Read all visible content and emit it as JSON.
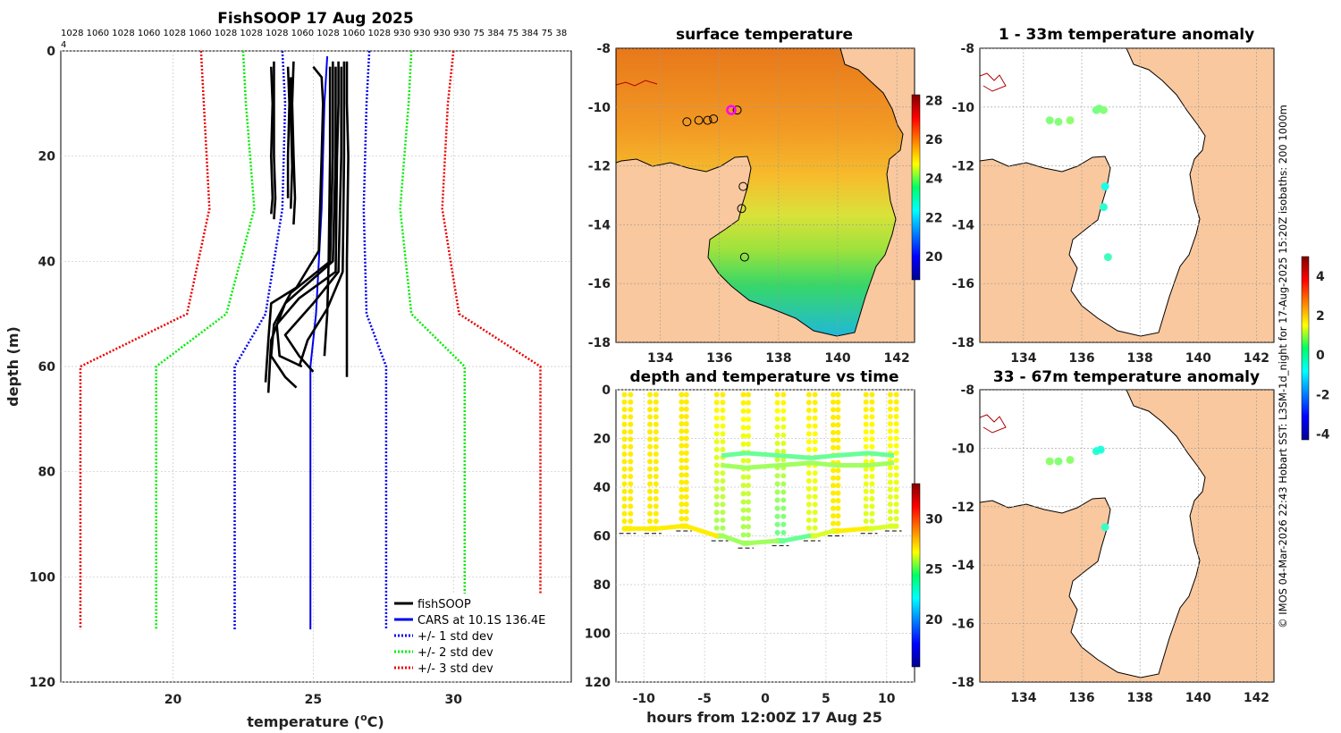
{
  "chart_data": [
    {
      "id": "profile",
      "type": "line",
      "title": "FishSOOP 17 Aug 2025",
      "top_tick_labels": "1028 1060 1028 1060 1028 1060 1028 1028 1028 1060 1028 1060 1028 930 930 930 930 75 384 75 384 75 38",
      "top_tick_overflow": "4",
      "xlabel": "temperature (",
      "xlabel_sup": "o",
      "xlabel_end": "C)",
      "ylabel": "depth (m)",
      "xlim": [
        16.0,
        34.2
      ],
      "ylim": [
        0,
        120
      ],
      "xticks": [
        20,
        25,
        30
      ],
      "yticks": [
        0,
        20,
        40,
        60,
        80,
        100,
        120
      ],
      "legend": [
        {
          "label": "fishSOOP",
          "color": "#000000",
          "style": "solid"
        },
        {
          "label": "CARS at 10.1S 136.4E",
          "color": "#0000ee",
          "style": "solid"
        },
        {
          "label": "+/- 1 std dev",
          "color": "#0000ee",
          "style": "dotted"
        },
        {
          "label": "+/- 2 std dev",
          "color": "#00ee00",
          "style": "dotted"
        },
        {
          "label": "+/- 3 std dev",
          "color": "#ee0000",
          "style": "dotted"
        }
      ],
      "cars": {
        "depth": [
          1,
          10,
          30,
          50,
          60,
          110
        ],
        "mean": [
          25.5,
          25.4,
          25.3,
          25.1,
          24.9,
          24.9
        ]
      },
      "std_lines": [
        {
          "name": "-1",
          "color": "#0000ee",
          "depth": [
            0,
            10,
            30,
            50,
            60,
            110
          ],
          "temp": [
            23.9,
            24.0,
            23.9,
            23.3,
            22.2,
            22.2
          ]
        },
        {
          "name": "+1",
          "color": "#0000ee",
          "depth": [
            0,
            10,
            30,
            50,
            60,
            110
          ],
          "temp": [
            27.0,
            26.9,
            26.8,
            26.9,
            27.6,
            27.6
          ]
        },
        {
          "name": "-2",
          "color": "#00ee00",
          "depth": [
            0,
            10,
            30,
            50,
            60,
            110
          ],
          "temp": [
            22.5,
            22.6,
            22.9,
            21.9,
            19.4,
            19.4
          ]
        },
        {
          "name": "+2",
          "color": "#00ee00",
          "depth": [
            0,
            10,
            30,
            50,
            60,
            110
          ],
          "temp": [
            28.5,
            28.4,
            28.1,
            28.5,
            30.4,
            30.4
          ]
        },
        {
          "name": "-3",
          "color": "#ee0000",
          "depth": [
            0,
            10,
            30,
            50,
            60,
            110
          ],
          "temp": [
            21.0,
            21.1,
            21.3,
            20.5,
            16.7,
            16.7
          ]
        },
        {
          "name": "+3",
          "color": "#ee0000",
          "depth": [
            0,
            10,
            30,
            50,
            60,
            110
          ],
          "temp": [
            30.0,
            29.8,
            29.6,
            30.2,
            33.1,
            33.1
          ]
        }
      ],
      "profiles": [
        {
          "temp": [
            23.6,
            23.6,
            23.6,
            23.65,
            23.6
          ],
          "depth": [
            2,
            10,
            20,
            28,
            32
          ]
        },
        {
          "temp": [
            23.5,
            23.55,
            23.5,
            23.55,
            23.5
          ],
          "depth": [
            3,
            10,
            20,
            28,
            31
          ]
        },
        {
          "temp": [
            24.1,
            24.15,
            24.1,
            24.1
          ],
          "depth": [
            3,
            10,
            20,
            28
          ]
        },
        {
          "temp": [
            24.3,
            24.25,
            24.3,
            24.35,
            24.3
          ],
          "depth": [
            2,
            10,
            20,
            28,
            33
          ]
        },
        {
          "temp": [
            24.2,
            24.2,
            24.25,
            24.2
          ],
          "depth": [
            5,
            12,
            22,
            30
          ]
        },
        {
          "temp": [
            25.0,
            25.3,
            25.35,
            25.3,
            25.2,
            24.4,
            23.5,
            23.4,
            23.3
          ],
          "depth": [
            3,
            5,
            10,
            20,
            38,
            45,
            48,
            55,
            63
          ]
        },
        {
          "temp": [
            25.7,
            25.7,
            25.7,
            25.6,
            24.2,
            23.6,
            23.5,
            24.0,
            24.4
          ],
          "depth": [
            2,
            10,
            20,
            40,
            46,
            52,
            58,
            62,
            64
          ]
        },
        {
          "temp": [
            25.8,
            25.8,
            25.8,
            25.7,
            24.0,
            23.5,
            23.4
          ],
          "depth": [
            3,
            10,
            20,
            40,
            48,
            55,
            65
          ]
        },
        {
          "temp": [
            25.9,
            25.9,
            25.85,
            25.8,
            24.5,
            23.7,
            23.8,
            24.6
          ],
          "depth": [
            2,
            10,
            20,
            42,
            47,
            52,
            58,
            60
          ]
        },
        {
          "temp": [
            26.0,
            26.0,
            26.0,
            25.9,
            25.0,
            24.0,
            24.5,
            25.0
          ],
          "depth": [
            3,
            10,
            20,
            42,
            48,
            54,
            58,
            61
          ]
        },
        {
          "temp": [
            26.1,
            26.1,
            26.1,
            26.05,
            25.5,
            24.8,
            24.5
          ],
          "depth": [
            2,
            10,
            20,
            42,
            49,
            55,
            60
          ]
        },
        {
          "temp": [
            26.2,
            26.2,
            26.25,
            26.2,
            26.2,
            26.2
          ],
          "depth": [
            2,
            10,
            20,
            40,
            50,
            62
          ]
        },
        {
          "temp": [
            25.6,
            25.6,
            25.6,
            25.55,
            25.5,
            25.4
          ],
          "depth": [
            3,
            10,
            20,
            40,
            50,
            58
          ]
        }
      ]
    },
    {
      "id": "sst_map",
      "type": "heatmap",
      "title": "surface temperature",
      "xlim": [
        132.5,
        142.6
      ],
      "ylim": [
        -18,
        -8
      ],
      "xticks": [
        134,
        136,
        138,
        140,
        142
      ],
      "yticks": [
        -8,
        -10,
        -12,
        -14,
        -16,
        -18
      ],
      "colorbar": {
        "min": 18.8,
        "max": 28.3,
        "ticks": [
          20,
          22,
          24,
          26,
          28
        ]
      },
      "stations": [
        {
          "lon": 134.9,
          "lat": -10.5
        },
        {
          "lon": 135.3,
          "lat": -10.45
        },
        {
          "lon": 135.6,
          "lat": -10.45
        },
        {
          "lon": 135.8,
          "lat": -10.4
        },
        {
          "lon": 136.6,
          "lat": -10.1
        },
        {
          "lon": 136.8,
          "lat": -12.7
        },
        {
          "lon": 136.75,
          "lat": -13.45
        },
        {
          "lon": 136.85,
          "lat": -15.1
        }
      ],
      "highlight": {
        "lon": 136.4,
        "lat": -10.1
      }
    },
    {
      "id": "time_series",
      "type": "scatter",
      "title": "depth and temperature vs time",
      "xlabel": "hours from 12:00Z 17 Aug 25",
      "xlim": [
        -12.3,
        12.3
      ],
      "ylim": [
        0,
        120
      ],
      "xticks": [
        -10,
        -5,
        0,
        5,
        10
      ],
      "yticks": [
        0,
        20,
        40,
        60,
        80,
        100,
        120
      ],
      "colorbar": {
        "min": 15.3,
        "max": 33.5,
        "ticks": [
          20,
          25,
          30
        ]
      },
      "casts": [
        {
          "t_start": -11.6,
          "t_end": -11.1,
          "bottom": 57,
          "temp_bottom": 27
        },
        {
          "t_start": -9.5,
          "t_end": -9.0,
          "bottom": 57,
          "temp_bottom": 27
        },
        {
          "t_start": -6.9,
          "t_end": -6.5,
          "bottom": 56,
          "temp_bottom": 27
        },
        {
          "t_start": -4.0,
          "t_end": -3.5,
          "bottom": 60,
          "temp_bottom": 25
        },
        {
          "t_start": -1.8,
          "t_end": -1.4,
          "bottom": 63,
          "temp_bottom": 25
        },
        {
          "t_start": 1.0,
          "t_end": 1.5,
          "bottom": 62,
          "temp_bottom": 24
        },
        {
          "t_start": 3.6,
          "t_end": 4.1,
          "bottom": 60,
          "temp_bottom": 26
        },
        {
          "t_start": 5.6,
          "t_end": 6.0,
          "bottom": 58,
          "temp_bottom": 27
        },
        {
          "t_start": 8.3,
          "t_end": 8.8,
          "bottom": 57,
          "temp_bottom": 26
        },
        {
          "t_start": 10.3,
          "t_end": 10.8,
          "bottom": 56,
          "temp_bottom": 26
        }
      ],
      "tows": [
        {
          "t": [
            -3.6,
            -1.6,
            1.2,
            3.8,
            5.8,
            8.5,
            10.6
          ],
          "depth": [
            27,
            26,
            27,
            28,
            27,
            26,
            27
          ],
          "temp": 24
        },
        {
          "t": [
            -3.6,
            -1.6,
            1.2,
            3.8,
            5.8,
            8.5,
            10.6
          ],
          "depth": [
            31,
            32,
            31,
            30,
            31,
            31,
            30
          ],
          "temp": 25
        }
      ]
    },
    {
      "id": "anom_1_33",
      "type": "heatmap",
      "title": "1 - 33m temperature anomaly",
      "xlim": [
        132.5,
        142.6
      ],
      "ylim": [
        -18,
        -8
      ],
      "xticks": [
        134,
        136,
        138,
        140,
        142
      ],
      "yticks": [
        -8,
        -10,
        -12,
        -14,
        -16,
        -18
      ],
      "points": [
        {
          "lon": 134.9,
          "lat": -10.45,
          "anom": 0.4
        },
        {
          "lon": 135.2,
          "lat": -10.5,
          "anom": 0.4
        },
        {
          "lon": 135.6,
          "lat": -10.45,
          "anom": 0.5
        },
        {
          "lon": 136.5,
          "lat": -10.1,
          "anom": 0.3
        },
        {
          "lon": 136.6,
          "lat": -10.05,
          "anom": 0.3
        },
        {
          "lon": 136.75,
          "lat": -10.1,
          "anom": 0.4
        },
        {
          "lon": 136.8,
          "lat": -12.7,
          "anom": -0.6
        },
        {
          "lon": 136.75,
          "lat": -13.4,
          "anom": -0.4
        },
        {
          "lon": 136.9,
          "lat": -15.1,
          "anom": -0.2
        }
      ]
    },
    {
      "id": "anom_33_67",
      "type": "heatmap",
      "title": "33 - 67m temperature anomaly",
      "xlim": [
        132.5,
        142.6
      ],
      "ylim": [
        -18,
        -8
      ],
      "xticks": [
        134,
        136,
        138,
        140,
        142
      ],
      "yticks": [
        -8,
        -10,
        -12,
        -14,
        -16,
        -18
      ],
      "points": [
        {
          "lon": 134.9,
          "lat": -10.45,
          "anom": 0.5
        },
        {
          "lon": 135.2,
          "lat": -10.45,
          "anom": 0.4
        },
        {
          "lon": 135.6,
          "lat": -10.4,
          "anom": 0.5
        },
        {
          "lon": 136.5,
          "lat": -10.1,
          "anom": -0.4
        },
        {
          "lon": 136.65,
          "lat": -10.05,
          "anom": -0.5
        },
        {
          "lon": 136.8,
          "lat": -12.7,
          "anom": -0.3
        }
      ],
      "colorbar": {
        "min": -4.3,
        "max": 5.0,
        "ticks": [
          -4,
          -2,
          0,
          2,
          4
        ]
      }
    }
  ],
  "side_caption": "© IMOS 04-Mar-2026 22:43 Hobart SST: L3SM-1d_night for 17-Aug-2025 15:20Z isobaths: 200  1000m",
  "colors": {
    "land": "#f9c89e",
    "coast": "#000000",
    "river": "#b00000",
    "grid": "#c8c8c8"
  }
}
